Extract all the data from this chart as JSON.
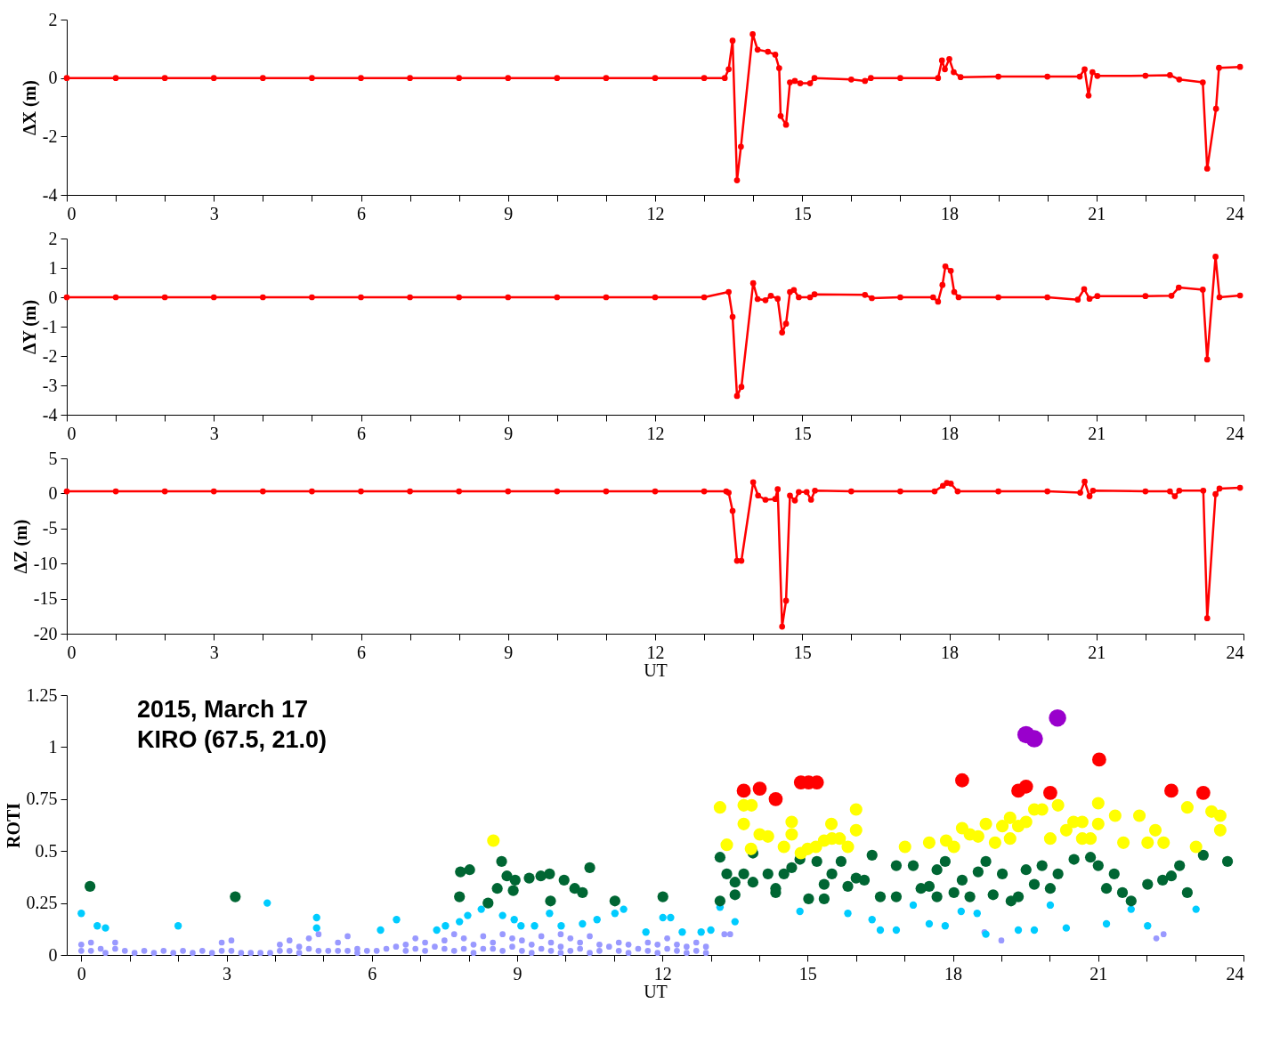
{
  "chart_data": [
    {
      "type": "line",
      "ylabel": "ΔX (m)",
      "xlim": [
        0,
        24
      ],
      "ylim": [
        -4,
        2
      ],
      "yticks": [
        -4,
        -2,
        0,
        2
      ],
      "xticks": [
        0,
        {
          "value": 1,
          "label": null
        },
        {
          "value": 2,
          "label": null
        },
        3,
        {
          "value": 4,
          "label": null
        },
        {
          "value": 5,
          "label": null
        },
        6,
        {
          "value": 7,
          "label": null
        },
        {
          "value": 8,
          "label": null
        },
        9,
        {
          "value": 10,
          "label": null
        },
        {
          "value": 11,
          "label": null
        },
        12,
        {
          "value": 13,
          "label": null
        },
        {
          "value": 14,
          "label": null
        },
        15,
        {
          "value": 16,
          "label": null
        },
        {
          "value": 17,
          "label": null
        },
        18,
        {
          "value": 19,
          "label": null
        },
        {
          "value": 20,
          "label": null
        },
        21,
        {
          "value": 22,
          "label": null
        },
        {
          "value": 23,
          "label": null
        },
        24
      ],
      "grid": false,
      "marker": "circle",
      "line_style": "solid",
      "series": [
        {
          "color": "#ff0000",
          "x": [
            0,
            1,
            2,
            3,
            4,
            5,
            6,
            7,
            8,
            9,
            10,
            11,
            12,
            13,
            13.42,
            13.5,
            13.58,
            13.67,
            13.75,
            13.99,
            14.09,
            14.3,
            14.45,
            14.53,
            14.56,
            14.67,
            14.75,
            14.85,
            14.96,
            15.16,
            15.25,
            16,
            16.28,
            16.4,
            17,
            17.77,
            17.85,
            17.91,
            18.0,
            18.09,
            18.23,
            19,
            20,
            20.66,
            20.76,
            20.84,
            20.92,
            21.02,
            22,
            22.5,
            22.69,
            23.17,
            23.26,
            23.44,
            23.5,
            23.93
          ],
          "values": [
            0,
            0,
            0,
            0,
            0,
            0,
            0,
            0,
            0,
            0,
            0,
            0,
            0,
            0,
            0,
            0.3,
            1.28,
            -3.5,
            -2.35,
            1.5,
            0.97,
            0.9,
            0.8,
            0.34,
            -1.3,
            -1.6,
            -0.15,
            -0.1,
            -0.18,
            -0.18,
            0,
            -0.05,
            -0.1,
            0,
            0,
            0,
            0.6,
            0.3,
            0.65,
            0.2,
            0.03,
            0.05,
            0.05,
            0.05,
            0.3,
            -0.6,
            0.2,
            0.07,
            0.08,
            0.1,
            -0.05,
            -0.15,
            -3.1,
            -1.05,
            0.35,
            0.38
          ]
        }
      ]
    },
    {
      "type": "line",
      "ylabel": "ΔY (m)",
      "xlim": [
        0,
        24
      ],
      "ylim": [
        -4,
        2
      ],
      "yticks": [
        -4,
        -3,
        -2,
        -1,
        0,
        1,
        2
      ],
      "xticks": [
        0,
        {
          "value": 1,
          "label": null
        },
        {
          "value": 2,
          "label": null
        },
        3,
        {
          "value": 4,
          "label": null
        },
        {
          "value": 5,
          "label": null
        },
        6,
        {
          "value": 7,
          "label": null
        },
        {
          "value": 8,
          "label": null
        },
        9,
        {
          "value": 10,
          "label": null
        },
        {
          "value": 11,
          "label": null
        },
        12,
        {
          "value": 13,
          "label": null
        },
        {
          "value": 14,
          "label": null
        },
        15,
        {
          "value": 16,
          "label": null
        },
        {
          "value": 17,
          "label": null
        },
        18,
        {
          "value": 19,
          "label": null
        },
        {
          "value": 20,
          "label": null
        },
        21,
        {
          "value": 22,
          "label": null
        },
        {
          "value": 23,
          "label": null
        },
        24
      ],
      "grid": false,
      "marker": "circle",
      "line_style": "solid",
      "series": [
        {
          "color": "#ff0000",
          "x": [
            0,
            1,
            2,
            3,
            4,
            5,
            6,
            7,
            8,
            9,
            10,
            11,
            12,
            13,
            13.5,
            13.58,
            13.67,
            13.76,
            14.0,
            14.09,
            14.25,
            14.36,
            14.5,
            14.59,
            14.67,
            14.75,
            14.83,
            14.93,
            15.16,
            15.25,
            16.28,
            16.42,
            17,
            17.67,
            17.77,
            17.86,
            17.92,
            18.03,
            18.1,
            18.19,
            19,
            20,
            20.62,
            20.75,
            20.86,
            21.02,
            22,
            22.53,
            22.68,
            23.17,
            23.26,
            23.43,
            23.51,
            23.93
          ],
          "values": [
            0,
            0,
            0,
            0,
            0,
            0,
            0,
            0,
            0,
            0,
            0,
            0,
            0,
            0,
            0.18,
            -0.67,
            -3.36,
            -3.05,
            0.48,
            -0.06,
            -0.1,
            0.05,
            -0.05,
            -1.2,
            -0.9,
            0.18,
            0.25,
            0,
            0,
            0.1,
            0.08,
            -0.03,
            0,
            0,
            -0.15,
            0.42,
            1.05,
            0.9,
            0.18,
            0,
            0,
            0,
            -0.08,
            0.28,
            -0.05,
            0.04,
            0.04,
            0.05,
            0.33,
            0.26,
            -2.12,
            1.38,
            0,
            0.06
          ]
        }
      ]
    },
    {
      "type": "line",
      "ylabel": "ΔZ (m)",
      "xlabel": "UT",
      "xlim": [
        0,
        24
      ],
      "ylim": [
        -20,
        5
      ],
      "yticks": [
        -20,
        -15,
        -10,
        -5,
        0,
        5
      ],
      "xticks": [
        0,
        {
          "value": 1,
          "label": null
        },
        {
          "value": 2,
          "label": null
        },
        3,
        {
          "value": 4,
          "label": null
        },
        {
          "value": 5,
          "label": null
        },
        6,
        {
          "value": 7,
          "label": null
        },
        {
          "value": 8,
          "label": null
        },
        9,
        {
          "value": 10,
          "label": null
        },
        {
          "value": 11,
          "label": null
        },
        12,
        {
          "value": 13,
          "label": null
        },
        {
          "value": 14,
          "label": null
        },
        15,
        {
          "value": 16,
          "label": null
        },
        {
          "value": 17,
          "label": null
        },
        18,
        {
          "value": 19,
          "label": null
        },
        {
          "value": 20,
          "label": null
        },
        21,
        {
          "value": 22,
          "label": null
        },
        {
          "value": 23,
          "label": null
        },
        24
      ],
      "grid": false,
      "marker": "circle",
      "line_style": "solid",
      "series": [
        {
          "color": "#ff0000",
          "x": [
            0,
            1,
            2,
            3,
            4,
            5,
            6,
            7,
            8,
            9,
            10,
            11,
            12,
            13,
            13.45,
            13.5,
            13.58,
            13.67,
            13.76,
            14.0,
            14.1,
            14.25,
            14.45,
            14.5,
            14.59,
            14.67,
            14.75,
            14.85,
            14.93,
            15.09,
            15.18,
            15.26,
            16,
            17,
            17.7,
            17.87,
            17.95,
            18.03,
            18.17,
            19,
            20,
            20.67,
            20.76,
            20.86,
            20.93,
            22,
            22.5,
            22.6,
            22.69,
            23.18,
            23.26,
            23.43,
            23.51,
            23.93
          ],
          "values": [
            0.3,
            0.3,
            0.3,
            0.3,
            0.3,
            0.3,
            0.3,
            0.3,
            0.3,
            0.3,
            0.3,
            0.3,
            0.3,
            0.3,
            0.3,
            0.1,
            -2.5,
            -9.6,
            -9.6,
            1.6,
            -0.3,
            -0.9,
            -0.8,
            0.6,
            -19,
            -15.3,
            -0.3,
            -1,
            0.2,
            0.2,
            -0.9,
            0.4,
            0.3,
            0.3,
            0.3,
            1.1,
            1.5,
            1.4,
            0.3,
            0.3,
            0.3,
            0.1,
            1.7,
            -0.4,
            0.4,
            0.3,
            0.3,
            -0.4,
            0.4,
            0.4,
            -17.8,
            -0.1,
            0.7,
            0.8
          ]
        }
      ]
    },
    {
      "type": "scatter",
      "ylabel": "ROTI",
      "xlabel": "UT",
      "xlim": [
        -0.3,
        24
      ],
      "ylim": [
        0,
        1.25
      ],
      "yticks": [
        0,
        0.25,
        0.5,
        0.75,
        1,
        1.25
      ],
      "xticks": [
        0,
        {
          "value": 1,
          "label": null
        },
        {
          "value": 2,
          "label": null
        },
        3,
        {
          "value": 4,
          "label": null
        },
        {
          "value": 5,
          "label": null
        },
        6,
        {
          "value": 7,
          "label": null
        },
        {
          "value": 8,
          "label": null
        },
        9,
        {
          "value": 10,
          "label": null
        },
        {
          "value": 11,
          "label": null
        },
        12,
        {
          "value": 13,
          "label": null
        },
        {
          "value": 14,
          "label": null
        },
        15,
        {
          "value": 16,
          "label": null
        },
        {
          "value": 17,
          "label": null
        },
        18,
        {
          "value": 19,
          "label": null
        },
        {
          "value": 20,
          "label": null
        },
        21,
        {
          "value": 22,
          "label": null
        },
        {
          "value": 23,
          "label": null
        },
        24
      ],
      "grid": false,
      "marker": "circle",
      "annotations": [
        "2015, March 17",
        "KIRO (67.5, 21.0)"
      ],
      "series": [
        {
          "color": "#9999ff",
          "x": [
            0,
            0,
            0.2,
            0.2,
            0.4,
            0.5,
            0.7,
            0.7,
            0.9,
            1.1,
            1.3,
            1.5,
            1.7,
            1.9,
            2.1,
            2.3,
            2.5,
            2.7,
            2.9,
            2.9,
            3.1,
            3.1,
            3.3,
            3.5,
            3.7,
            3.9,
            4.1,
            4.1,
            4.3,
            4.3,
            4.5,
            4.5,
            4.7,
            4.7,
            4.9,
            4.9,
            5.1,
            5.3,
            5.3,
            5.5,
            5.5,
            5.7,
            5.7,
            5.9,
            6.1,
            6.3,
            6.5,
            6.7,
            6.7,
            6.9,
            6.9,
            7.1,
            7.1,
            7.3,
            7.5,
            7.5,
            7.7,
            7.7,
            7.9,
            7.9,
            8.1,
            8.1,
            8.3,
            8.3,
            8.5,
            8.5,
            8.7,
            8.7,
            8.9,
            8.9,
            9.1,
            9.1,
            9.3,
            9.3,
            9.5,
            9.5,
            9.7,
            9.7,
            9.9,
            9.9,
            9.9,
            10.1,
            10.1,
            10.3,
            10.3,
            10.5,
            10.5,
            10.7,
            10.7,
            10.9,
            11.1,
            11.1,
            11.3,
            11.3,
            11.5,
            11.7,
            11.7,
            11.9,
            11.9,
            12.1,
            12.1,
            12.3,
            12.3,
            12.5,
            12.5,
            12.7,
            12.7,
            12.9,
            12.9,
            13.28,
            13.4,
            18.65,
            19.0,
            22.2,
            22.35
          ],
          "values": [
            0.02,
            0.05,
            0.02,
            0.06,
            0.03,
            0.01,
            0.03,
            0.06,
            0.02,
            0.01,
            0.02,
            0.01,
            0.02,
            0.01,
            0.02,
            0.01,
            0.02,
            0.01,
            0.02,
            0.06,
            0.02,
            0.07,
            0.01,
            0.01,
            0.01,
            0.01,
            0.02,
            0.05,
            0.02,
            0.07,
            0.01,
            0.04,
            0.03,
            0.08,
            0.02,
            0.1,
            0.02,
            0.02,
            0.06,
            0.02,
            0.09,
            0.01,
            0.03,
            0.02,
            0.02,
            0.03,
            0.04,
            0.02,
            0.05,
            0.03,
            0.08,
            0.02,
            0.06,
            0.04,
            0.03,
            0.07,
            0.02,
            0.1,
            0.03,
            0.08,
            0.01,
            0.05,
            0.03,
            0.09,
            0.03,
            0.06,
            0.02,
            0.1,
            0.04,
            0.08,
            0.02,
            0.07,
            0.01,
            0.05,
            0.03,
            0.09,
            0.02,
            0.06,
            0.01,
            0.04,
            0.1,
            0.02,
            0.08,
            0.03,
            0.06,
            0.01,
            0.09,
            0.02,
            0.05,
            0.04,
            0.02,
            0.06,
            0.01,
            0.05,
            0.03,
            0.02,
            0.06,
            0.01,
            0.05,
            0.03,
            0.08,
            0.02,
            0.05,
            0.01,
            0.04,
            0.02,
            0.06,
            0.01,
            0.04,
            0.1,
            0.1,
            0.11,
            0.07,
            0.08,
            0.1
          ]
        },
        {
          "color": "#00ccff",
          "x": [
            0,
            0.33,
            0.5,
            2.0,
            3.84,
            4.86,
            4.86,
            6.18,
            6.51,
            7.34,
            7.52,
            7.81,
            7.98,
            8.26,
            8.44,
            8.7,
            8.94,
            9.08,
            9.36,
            9.67,
            9.91,
            10.35,
            10.65,
            11.02,
            11.2,
            11.66,
            12.01,
            12.17,
            12.41,
            12.8,
            13.0,
            13.19,
            13.5,
            14.84,
            15.83,
            16.33,
            16.5,
            16.83,
            17.18,
            17.51,
            17.84,
            18.17,
            18.5,
            18.68,
            19.35,
            19.68,
            20.01,
            20.34,
            21.17,
            21.68,
            22.02,
            23.02
          ],
          "values": [
            0.2,
            0.14,
            0.13,
            0.14,
            0.25,
            0.18,
            0.13,
            0.12,
            0.17,
            0.12,
            0.14,
            0.16,
            0.19,
            0.22,
            null,
            0.19,
            0.17,
            0.14,
            0.14,
            0.2,
            0.14,
            0.15,
            0.17,
            0.2,
            0.22,
            0.11,
            0.18,
            0.18,
            0.11,
            0.11,
            0.12,
            0.23,
            0.16,
            0.21,
            0.2,
            0.17,
            0.12,
            0.12,
            0.24,
            0.15,
            0.14,
            0.21,
            0.2,
            0.1,
            0.12,
            0.12,
            0.24,
            0.13,
            0.15,
            0.22,
            0.14,
            0.22
          ]
        },
        {
          "color": "#006633",
          "x": [
            0.18,
            3.18,
            7.83,
            8.02,
            7.81,
            8.4,
            8.68,
            8.59,
            8.79,
            8.96,
            8.92,
            9.25,
            9.49,
            9.67,
            9.69,
            9.97,
            10.19,
            10.35,
            10.5,
            11.02,
            12.01,
            13.19,
            13.33,
            13.19,
            13.5,
            13.5,
            13.68,
            13.87,
            13.87,
            14.18,
            14.34,
            14.34,
            14.51,
            14.67,
            14.84,
            15.02,
            15.19,
            15.34,
            15.34,
            15.5,
            15.69,
            15.83,
            16.0,
            16.17,
            16.33,
            16.5,
            16.83,
            16.83,
            17.18,
            17.34,
            17.51,
            17.67,
            17.67,
            17.84,
            18.02,
            18.19,
            18.35,
            18.52,
            18.68,
            18.83,
            19.02,
            19.2,
            19.35,
            19.51,
            19.68,
            19.84,
            20.01,
            20.17,
            20.5,
            20.84,
            21.0,
            21.17,
            21.33,
            21.5,
            21.68,
            22.02,
            22.33,
            22.51,
            22.68,
            22.84,
            23.17,
            23.67
          ],
          "values": [
            0.33,
            0.28,
            0.4,
            0.41,
            0.28,
            0.25,
            0.45,
            0.32,
            0.38,
            0.36,
            0.31,
            0.37,
            0.38,
            0.39,
            0.26,
            0.36,
            0.32,
            0.3,
            0.42,
            0.26,
            0.28,
            0.47,
            0.39,
            0.26,
            0.35,
            0.29,
            0.39,
            0.35,
            0.49,
            0.39,
            0.32,
            0.3,
            0.39,
            0.42,
            0.46,
            0.27,
            0.45,
            0.34,
            0.27,
            0.39,
            0.45,
            0.33,
            0.37,
            0.36,
            0.48,
            0.28,
            0.28,
            0.43,
            0.43,
            0.32,
            0.33,
            0.41,
            0.28,
            0.45,
            0.3,
            0.36,
            0.28,
            0.4,
            0.45,
            0.29,
            0.39,
            0.26,
            0.28,
            0.41,
            0.34,
            0.43,
            0.32,
            0.39,
            0.46,
            0.47,
            0.43,
            0.32,
            0.39,
            0.3,
            0.26,
            0.34,
            0.36,
            0.38,
            0.43,
            0.3,
            0.48,
            0.45
          ]
        },
        {
          "color": "#ffff00",
          "x": [
            8.51,
            13.19,
            13.33,
            13.68,
            13.84,
            13.68,
            14.01,
            14.18,
            13.83,
            14.34,
            14.51,
            14.67,
            14.67,
            14.86,
            15.0,
            15.17,
            15.34,
            15.49,
            15.5,
            15.66,
            15.83,
            16.0,
            16.0,
            17.01,
            17.51,
            17.86,
            18.02,
            18.19,
            18.35,
            18.52,
            18.68,
            18.87,
            19.02,
            19.18,
            19.18,
            19.35,
            19.51,
            19.68,
            19.84,
            20.01,
            20.17,
            20.34,
            20.49,
            20.67,
            20.67,
            20.84,
            21.0,
            21.0,
            21.35,
            21.52,
            21.85,
            22.02,
            22.18,
            22.35,
            22.84,
            23.02,
            23.34,
            23.52,
            23.52
          ],
          "values": [
            0.55,
            0.71,
            0.53,
            0.72,
            0.72,
            0.63,
            0.58,
            0.57,
            0.51,
            null,
            0.52,
            0.64,
            0.58,
            0.49,
            0.51,
            0.52,
            0.55,
            0.63,
            0.56,
            0.56,
            0.52,
            0.7,
            0.6,
            0.52,
            0.54,
            0.55,
            0.52,
            0.61,
            0.58,
            0.57,
            0.63,
            0.54,
            0.62,
            0.66,
            0.56,
            0.62,
            0.64,
            0.7,
            0.7,
            0.56,
            0.72,
            0.6,
            0.64,
            0.64,
            0.56,
            0.56,
            0.73,
            0.63,
            0.67,
            0.54,
            0.67,
            0.54,
            0.6,
            0.54,
            0.71,
            0.52,
            0.69,
            0.67,
            0.6
          ]
        },
        {
          "color": "#ff0000",
          "x": [
            13.68,
            14.01,
            14.34,
            14.86,
            15.02,
            15.19,
            18.19,
            19.35,
            19.51,
            20.01,
            21.02,
            22.51,
            23.17
          ],
          "values": [
            0.79,
            0.8,
            0.75,
            0.83,
            0.83,
            0.83,
            0.84,
            0.79,
            0.81,
            0.78,
            0.94,
            0.79,
            0.78
          ]
        },
        {
          "color": "#9900cc",
          "x": [
            19.51,
            19.68,
            20.16
          ],
          "values": [
            1.06,
            1.04,
            1.14
          ]
        }
      ]
    }
  ]
}
